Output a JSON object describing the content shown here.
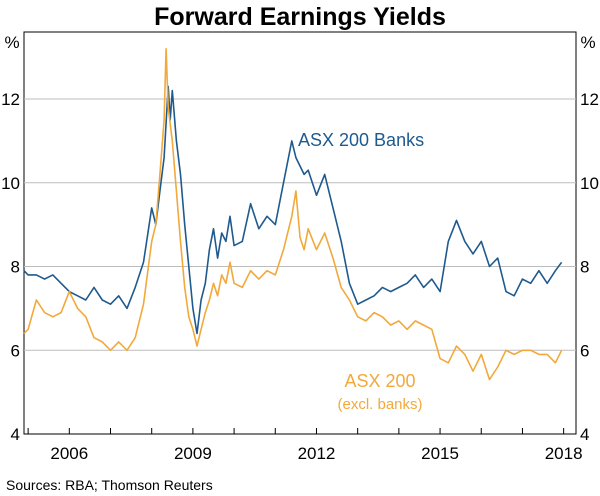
{
  "chart_data": {
    "type": "line",
    "title": "Forward Earnings Yields",
    "unit_left": "%",
    "unit_right": "%",
    "source": "Sources: RBA; Thomson Reuters",
    "xlim": [
      2004.9,
      2018.3
    ],
    "ylim": [
      4,
      13.6
    ],
    "y_ticks": [
      4,
      6,
      8,
      10,
      12
    ],
    "x_ticks": [
      2006,
      2009,
      2012,
      2015,
      2018
    ],
    "x_tick_labels": [
      "2006",
      "2009",
      "2012",
      "2015",
      "2018"
    ],
    "grid": true,
    "series": [
      {
        "name": "ASX 200 Banks",
        "color": "#1f5a8e",
        "x": [
          2004.9,
          2005.0,
          2005.2,
          2005.4,
          2005.6,
          2005.8,
          2006.0,
          2006.2,
          2006.4,
          2006.6,
          2006.8,
          2007.0,
          2007.2,
          2007.4,
          2007.6,
          2007.8,
          2008.0,
          2008.1,
          2008.2,
          2008.3,
          2008.4,
          2008.45,
          2008.5,
          2008.6,
          2008.7,
          2008.8,
          2008.9,
          2009.0,
          2009.1,
          2009.2,
          2009.3,
          2009.4,
          2009.5,
          2009.6,
          2009.7,
          2009.8,
          2009.9,
          2010.0,
          2010.2,
          2010.4,
          2010.6,
          2010.8,
          2011.0,
          2011.2,
          2011.4,
          2011.5,
          2011.6,
          2011.7,
          2011.8,
          2012.0,
          2012.2,
          2012.4,
          2012.6,
          2012.8,
          2013.0,
          2013.2,
          2013.4,
          2013.6,
          2013.8,
          2014.0,
          2014.2,
          2014.4,
          2014.6,
          2014.8,
          2015.0,
          2015.2,
          2015.4,
          2015.6,
          2015.8,
          2016.0,
          2016.2,
          2016.4,
          2016.6,
          2016.8,
          2017.0,
          2017.2,
          2017.4,
          2017.6,
          2017.8,
          2017.95
        ],
        "y": [
          7.9,
          7.8,
          7.8,
          7.7,
          7.8,
          7.6,
          7.4,
          7.3,
          7.2,
          7.5,
          7.2,
          7.1,
          7.3,
          7.0,
          7.5,
          8.1,
          9.4,
          9.0,
          9.8,
          10.6,
          12.3,
          11.5,
          12.2,
          11.0,
          10.2,
          9.0,
          8.0,
          7.0,
          6.4,
          7.2,
          7.6,
          8.4,
          8.9,
          8.2,
          8.8,
          8.6,
          9.2,
          8.5,
          8.6,
          9.5,
          8.9,
          9.2,
          9.0,
          10.0,
          11.0,
          10.6,
          10.4,
          10.2,
          10.3,
          9.7,
          10.2,
          9.4,
          8.6,
          7.6,
          7.1,
          7.2,
          7.3,
          7.5,
          7.4,
          7.5,
          7.6,
          7.8,
          7.5,
          7.7,
          7.4,
          8.6,
          9.1,
          8.6,
          8.3,
          8.6,
          8.0,
          8.2,
          7.4,
          7.3,
          7.7,
          7.6,
          7.9,
          7.6,
          7.9,
          8.1
        ]
      },
      {
        "name": "ASX 200",
        "subtitle": "(excl. banks)",
        "color": "#f2a93b",
        "x": [
          2004.9,
          2005.0,
          2005.2,
          2005.4,
          2005.6,
          2005.8,
          2006.0,
          2006.2,
          2006.4,
          2006.6,
          2006.8,
          2007.0,
          2007.2,
          2007.4,
          2007.6,
          2007.8,
          2008.0,
          2008.1,
          2008.2,
          2008.3,
          2008.35,
          2008.4,
          2008.5,
          2008.6,
          2008.7,
          2008.8,
          2008.9,
          2009.0,
          2009.1,
          2009.2,
          2009.3,
          2009.4,
          2009.5,
          2009.6,
          2009.7,
          2009.8,
          2009.9,
          2010.0,
          2010.2,
          2010.4,
          2010.6,
          2010.8,
          2011.0,
          2011.2,
          2011.4,
          2011.5,
          2011.6,
          2011.7,
          2011.8,
          2012.0,
          2012.2,
          2012.4,
          2012.6,
          2012.8,
          2013.0,
          2013.2,
          2013.4,
          2013.6,
          2013.8,
          2014.0,
          2014.2,
          2014.4,
          2014.6,
          2014.8,
          2015.0,
          2015.2,
          2015.4,
          2015.6,
          2015.8,
          2016.0,
          2016.2,
          2016.4,
          2016.6,
          2016.8,
          2017.0,
          2017.2,
          2017.4,
          2017.6,
          2017.8,
          2017.95
        ],
        "y": [
          6.4,
          6.5,
          7.2,
          6.9,
          6.8,
          6.9,
          7.4,
          7.0,
          6.8,
          6.3,
          6.2,
          6.0,
          6.2,
          6.0,
          6.3,
          7.1,
          8.6,
          9.0,
          10.2,
          11.5,
          13.2,
          11.8,
          11.0,
          9.8,
          8.6,
          7.5,
          6.8,
          6.5,
          6.1,
          6.5,
          6.9,
          7.2,
          7.6,
          7.3,
          7.8,
          7.6,
          8.1,
          7.6,
          7.5,
          7.9,
          7.7,
          7.9,
          7.8,
          8.4,
          9.2,
          9.8,
          8.7,
          8.4,
          8.9,
          8.4,
          8.8,
          8.2,
          7.5,
          7.2,
          6.8,
          6.7,
          6.9,
          6.8,
          6.6,
          6.7,
          6.5,
          6.7,
          6.6,
          6.5,
          5.8,
          5.7,
          6.1,
          5.9,
          5.5,
          5.9,
          5.3,
          5.6,
          6.0,
          5.9,
          6.0,
          6.0,
          5.9,
          5.9,
          5.7,
          6.0
        ]
      }
    ]
  }
}
